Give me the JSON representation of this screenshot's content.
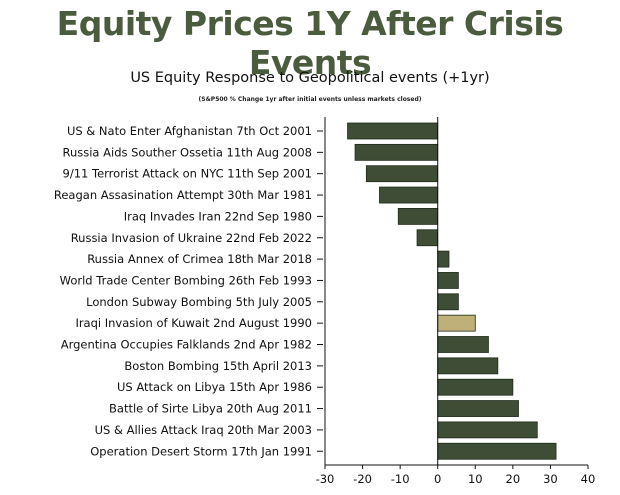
{
  "chart_data": {
    "type": "bar",
    "orientation": "horizontal",
    "title": "Equity Prices 1Y After Crisis Events",
    "subtitle": "US Equity Response to Geopolitical events (+1yr)",
    "note": "(S&P500 % Change 1yr after initial events unless markets closed)",
    "xlabel": "",
    "ylabel": "",
    "xlim": [
      -30,
      40
    ],
    "xticks": [
      -30,
      -20,
      -10,
      0,
      10,
      20,
      30,
      40
    ],
    "categories": [
      "US & Nato Enter Afghanistan 7th Oct 2001",
      "Russia Aids Souther Ossetia 11th Aug 2008",
      "9/11 Terrorist Attack on NYC 11th Sep 2001",
      "Reagan Assasination Attempt 30th Mar 1981",
      "Iraq Invades Iran 22nd Sep 1980",
      "Russia Invasion of Ukraine 22nd Feb 2022",
      "Russia Annex of Crimea 18th Mar 2018",
      "World Trade Center Bombing 26th Feb 1993",
      "London Subway Bombing 5th July 2005",
      "Iraqi Invasion of Kuwait 2nd August 1990",
      "Argentina Occupies Falklands 2nd Apr 1982",
      "Boston Bombing 15th April 2013",
      "US Attack on Libya 15th Apr 1986",
      "Battle of Sirte Libya 20th Aug 2011",
      "US & Allies Attack Iraq 20th Mar 2003",
      "Operation Desert Storm 17th Jan 1991"
    ],
    "values": [
      -24,
      -22,
      -19,
      -15.5,
      -10.5,
      -5.5,
      3,
      5.5,
      5.5,
      10,
      13.5,
      16,
      20,
      21.5,
      26.5,
      31.5
    ],
    "highlight_index": 9,
    "colors": {
      "bar": "#3f4d37",
      "highlight": "#bfb07a",
      "title": "#4b5b3e"
    }
  }
}
